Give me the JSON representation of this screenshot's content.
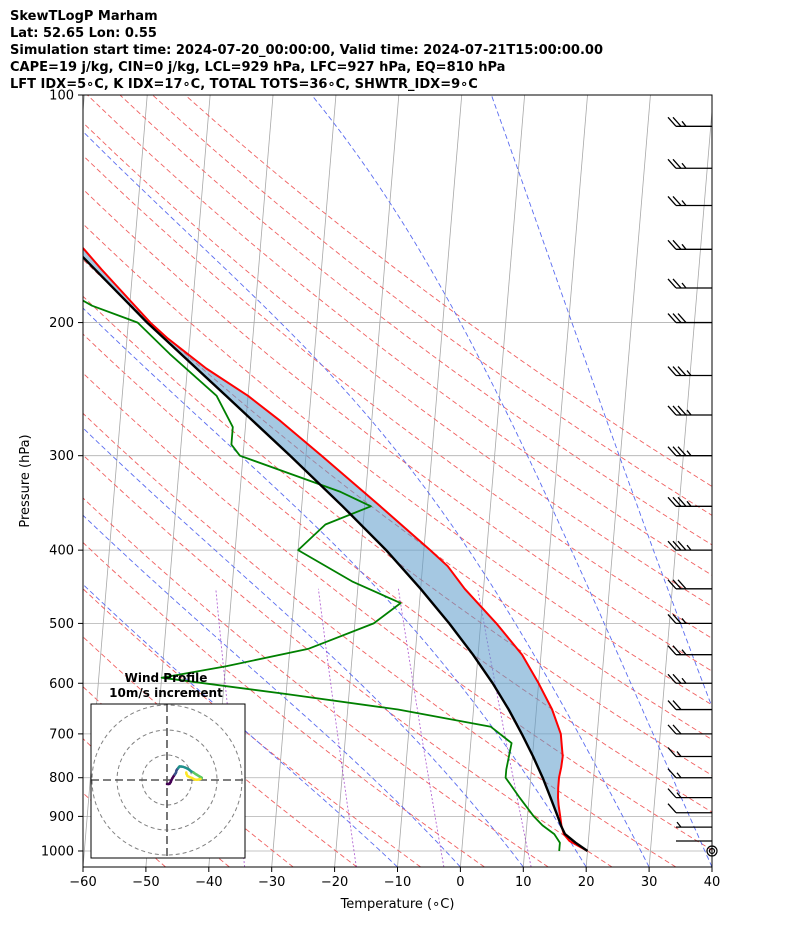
{
  "header": {
    "line1": "SkewTLogP Marham",
    "line2": "Lat: 52.65   Lon: 0.55",
    "line3": "Simulation start time: 2024-07-20_00:00:00, Valid time: 2024-07-21T15:00:00.00",
    "line4": "CAPE=19 j/kg, CIN=0 j/kg, LCL=929 hPa, LFC=927 hPa, EQ=810 hPa",
    "line5": "LFT IDX=5∘C, K IDX=17∘C, TOTAL TOTS=36∘C, SHWTR_IDX=9∘C"
  },
  "chart_data": {
    "type": "line",
    "xlabel": "Temperature (∘C)",
    "ylabel": "Pressure (hPa)",
    "xlim": [
      -60,
      40
    ],
    "ylim": [
      1050,
      100
    ],
    "x_scale": "skewed",
    "y_scale": "log",
    "grid": true,
    "x_ticks": [
      -60,
      -50,
      -40,
      -30,
      -20,
      -10,
      0,
      10,
      20,
      30,
      40
    ],
    "x_tick_labels": [
      "−60",
      "−50",
      "−40",
      "−30",
      "−20",
      "−10",
      "0",
      "10",
      "20",
      "30",
      "40"
    ],
    "y_ticks": [
      1000,
      900,
      800,
      700,
      600,
      500,
      400,
      300,
      200,
      100
    ],
    "y_tick_labels": [
      "1000",
      "900",
      "800",
      "700",
      "600",
      "500",
      "400",
      "300",
      "200",
      "100"
    ],
    "series": [
      {
        "role": "temperature",
        "color": "#ff0000",
        "points": [
          [
            1000,
            20.0
          ],
          [
            970,
            17.0
          ],
          [
            950,
            16.0
          ],
          [
            925,
            15.5
          ],
          [
            900,
            15.2
          ],
          [
            870,
            14.8
          ],
          [
            850,
            14.6
          ],
          [
            825,
            14.5
          ],
          [
            800,
            14.5
          ],
          [
            775,
            14.7
          ],
          [
            750,
            14.8
          ],
          [
            700,
            14.2
          ],
          [
            650,
            12.5
          ],
          [
            600,
            10.0
          ],
          [
            550,
            7.0
          ],
          [
            500,
            2.5
          ],
          [
            450,
            -3.0
          ],
          [
            420,
            -6.0
          ],
          [
            400,
            -9.0
          ],
          [
            350,
            -17.5
          ],
          [
            300,
            -27.5
          ],
          [
            270,
            -34.5
          ],
          [
            250,
            -40.0
          ],
          [
            230,
            -47.0
          ],
          [
            210,
            -53.5
          ],
          [
            200,
            -56.5
          ],
          [
            180,
            -62.0
          ],
          [
            170,
            -65.0
          ],
          [
            160,
            -68.0
          ],
          [
            150,
            -71.5
          ],
          [
            140,
            -75.5
          ],
          [
            130,
            -79.0
          ],
          [
            125,
            -80.5
          ],
          [
            120,
            -81.5
          ],
          [
            112,
            -83.0
          ],
          [
            105,
            -85.0
          ],
          [
            100,
            -86.3
          ]
        ]
      },
      {
        "role": "dewpoint",
        "color": "#008000",
        "points": [
          [
            1000,
            15.5
          ],
          [
            975,
            15.5
          ],
          [
            950,
            14.5
          ],
          [
            925,
            12.5
          ],
          [
            900,
            11.0
          ],
          [
            850,
            8.5
          ],
          [
            800,
            6.0
          ],
          [
            780,
            6.0
          ],
          [
            720,
            6.5
          ],
          [
            685,
            3.0
          ],
          [
            650,
            -12.0
          ],
          [
            620,
            -30.0
          ],
          [
            590,
            -50.0
          ],
          [
            570,
            -40.0
          ],
          [
            540,
            -27.0
          ],
          [
            500,
            -17.0
          ],
          [
            470,
            -13.0
          ],
          [
            440,
            -21.0
          ],
          [
            400,
            -30.0
          ],
          [
            370,
            -26.0
          ],
          [
            350,
            -19.0
          ],
          [
            335,
            -24.0
          ],
          [
            300,
            -40.5
          ],
          [
            290,
            -42.0
          ],
          [
            275,
            -42.0
          ],
          [
            250,
            -45.0
          ],
          [
            220,
            -53.0
          ],
          [
            200,
            -58.5
          ],
          [
            190,
            -66.0
          ],
          [
            175,
            -74.0
          ],
          [
            160,
            -77.0
          ],
          [
            150,
            -79.0
          ],
          [
            140,
            -81.0
          ],
          [
            130,
            -79.0
          ],
          [
            120,
            -79.5
          ],
          [
            110,
            -79.0
          ],
          [
            100,
            -80.0
          ]
        ]
      },
      {
        "role": "parcel",
        "color": "#000000",
        "points": [
          [
            1000,
            20.0
          ],
          [
            975,
            18.0
          ],
          [
            950,
            16.2
          ],
          [
            928,
            15.5
          ],
          [
            900,
            14.8
          ],
          [
            850,
            13.4
          ],
          [
            800,
            11.9
          ],
          [
            750,
            10.1
          ],
          [
            700,
            8.0
          ],
          [
            650,
            5.6
          ],
          [
            600,
            2.7
          ],
          [
            550,
            -0.8
          ],
          [
            500,
            -5.0
          ],
          [
            450,
            -10.0
          ],
          [
            400,
            -16.0
          ],
          [
            350,
            -23.5
          ],
          [
            300,
            -32.5
          ],
          [
            250,
            -43.5
          ],
          [
            200,
            -57.0
          ],
          [
            150,
            -73.0
          ],
          [
            125,
            -83.0
          ],
          [
            100,
            -94.6
          ]
        ]
      }
    ],
    "wind_barbs": [
      {
        "p": 1000,
        "speed_kt": 0
      },
      {
        "p": 970,
        "speed_kt": 2
      },
      {
        "p": 930,
        "speed_kt": 5
      },
      {
        "p": 890,
        "speed_kt": 12
      },
      {
        "p": 850,
        "speed_kt": 15
      },
      {
        "p": 800,
        "speed_kt": 15
      },
      {
        "p": 750,
        "speed_kt": 15
      },
      {
        "p": 700,
        "speed_kt": 20
      },
      {
        "p": 650,
        "speed_kt": 20
      },
      {
        "p": 600,
        "speed_kt": 25
      },
      {
        "p": 550,
        "speed_kt": 25
      },
      {
        "p": 500,
        "speed_kt": 25
      },
      {
        "p": 450,
        "speed_kt": 30
      },
      {
        "p": 400,
        "speed_kt": 35
      },
      {
        "p": 350,
        "speed_kt": 35
      },
      {
        "p": 300,
        "speed_kt": 35
      },
      {
        "p": 265,
        "speed_kt": 35
      },
      {
        "p": 235,
        "speed_kt": 35
      },
      {
        "p": 200,
        "speed_kt": 30
      },
      {
        "p": 180,
        "speed_kt": 25
      },
      {
        "p": 160,
        "speed_kt": 25
      },
      {
        "p": 140,
        "speed_kt": 25
      },
      {
        "p": 125,
        "speed_kt": 25
      },
      {
        "p": 110,
        "speed_kt": 25
      }
    ],
    "hodograph": {
      "title": "Wind Profile",
      "subtitle": "10m/s increment",
      "colormap": [
        "#440154",
        "#3b528b",
        "#21918c",
        "#5ec962",
        "#fde725"
      ],
      "points": [
        [
          0,
          -1.6
        ],
        [
          0.5,
          -1.6
        ],
        [
          1.0,
          -1.5
        ],
        [
          1.2,
          -1.2
        ],
        [
          1.5,
          -0.8
        ],
        [
          1.6,
          -0.4
        ],
        [
          1.9,
          0.2
        ],
        [
          2.2,
          0.8
        ],
        [
          2.7,
          1.6
        ],
        [
          3.1,
          2.2
        ],
        [
          3.4,
          2.6
        ],
        [
          3.6,
          3.0
        ],
        [
          3.7,
          3.5
        ],
        [
          3.8,
          3.8
        ],
        [
          3.9,
          4.0
        ],
        [
          4.0,
          4.2
        ],
        [
          4.2,
          4.4
        ],
        [
          4.5,
          4.8
        ],
        [
          4.8,
          5.2
        ],
        [
          5.0,
          5.4
        ],
        [
          5.6,
          5.4
        ],
        [
          6.3,
          5.3
        ],
        [
          7.2,
          5.0
        ],
        [
          8.1,
          4.6
        ],
        [
          8.8,
          4.2
        ],
        [
          9.6,
          3.5
        ],
        [
          10.6,
          3.0
        ],
        [
          11.4,
          2.4
        ],
        [
          12.1,
          2.0
        ],
        [
          12.7,
          1.6
        ],
        [
          13.2,
          1.3
        ],
        [
          13.6,
          1.1
        ],
        [
          13.9,
          0.9
        ],
        [
          13.8,
          0.6
        ],
        [
          13.4,
          0.4
        ],
        [
          12.7,
          0.2
        ],
        [
          11.9,
          0.1
        ],
        [
          11.0,
          0.2
        ],
        [
          10.0,
          0.8
        ],
        [
          9.0,
          1.2
        ],
        [
          8.2,
          1.6
        ],
        [
          7.8,
          2.4
        ],
        [
          7.7,
          3.0
        ]
      ]
    }
  }
}
